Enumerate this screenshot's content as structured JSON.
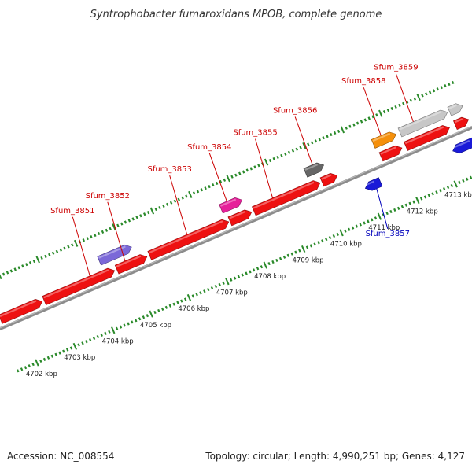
{
  "title": "Syntrophobacter fumaroxidans MPOB, complete genome",
  "accession": "Accession: NC_008554",
  "summary": "Topology: circular; Length: 4,990,251 bp; Genes: 4,127",
  "colors": {
    "red": "#ee1111",
    "purple": "#7b68d8",
    "pink": "#e6219a",
    "gray": "#666666",
    "orange": "#f5900c",
    "lightgray": "#c7c7c7",
    "blue": "#1a1ad8",
    "tick": "#2a8a2a",
    "axis": "#8c8c8c",
    "label_red": "#cc0000",
    "label_blue": "#0000bb"
  },
  "map": {
    "start_kbp": 4701.5,
    "end_kbp": 4713.9,
    "ticks_kbp": [
      4702,
      4703,
      4704,
      4705,
      4706,
      4707,
      4708,
      4709,
      4710,
      4711,
      4712,
      4713
    ],
    "tick_suffix": " kbp"
  },
  "genes": [
    {
      "strand": "+",
      "start": 4701.6,
      "end": 4702.7,
      "color": "red"
    },
    {
      "strand": "+",
      "start": 4702.75,
      "end": 4704.6,
      "color": "red",
      "label": "Sfum_3851",
      "label_at": 4704.0
    },
    {
      "strand": "+",
      "start": 4704.66,
      "end": 4705.45,
      "color": "red",
      "label": "Sfum_3852",
      "label_at": 4704.92
    },
    {
      "strand": "+",
      "start": 4704.35,
      "end": 4705.2,
      "color": "purple",
      "level": 1
    },
    {
      "strand": "+",
      "start": 4705.52,
      "end": 4707.6,
      "color": "red",
      "label": "Sfum_3853",
      "label_at": 4706.55
    },
    {
      "strand": "+",
      "start": 4707.63,
      "end": 4708.2,
      "color": "red"
    },
    {
      "strand": "+",
      "start": 4707.55,
      "end": 4708.1,
      "color": "pink",
      "level": 1,
      "label": "Sfum_3854",
      "label_at": 4707.75
    },
    {
      "strand": "+",
      "start": 4708.26,
      "end": 4710.0,
      "color": "red",
      "label": "Sfum_3855",
      "label_at": 4708.8
    },
    {
      "strand": "+",
      "start": 4710.05,
      "end": 4710.45,
      "color": "red"
    },
    {
      "strand": "+",
      "start": 4709.77,
      "end": 4710.25,
      "color": "gray",
      "level": 1,
      "label": "Sfum_3856",
      "label_at": 4710.0
    },
    {
      "strand": "+",
      "start": 4711.6,
      "end": 4712.15,
      "color": "red"
    },
    {
      "strand": "+",
      "start": 4711.55,
      "end": 4712.15,
      "color": "orange",
      "level": 1,
      "label": "Sfum_3858",
      "label_at": 4711.8
    },
    {
      "strand": "+",
      "start": 4712.25,
      "end": 4713.4,
      "color": "red"
    },
    {
      "strand": "+",
      "start": 4712.25,
      "end": 4713.5,
      "color": "lightgray",
      "level": 1,
      "label": "Sfum_3859",
      "label_at": 4712.65
    },
    {
      "strand": "+",
      "start": 4713.55,
      "end": 4713.9,
      "color": "red"
    },
    {
      "strand": "+",
      "start": 4713.55,
      "end": 4713.9,
      "color": "lightgray",
      "level": 1
    },
    {
      "strand": "-",
      "start": 4710.95,
      "end": 4711.35,
      "color": "blue",
      "label": "Sfum_3857",
      "label_at": 4711.2
    },
    {
      "strand": "-",
      "start": 4713.25,
      "end": 4713.85,
      "color": "blue"
    }
  ]
}
